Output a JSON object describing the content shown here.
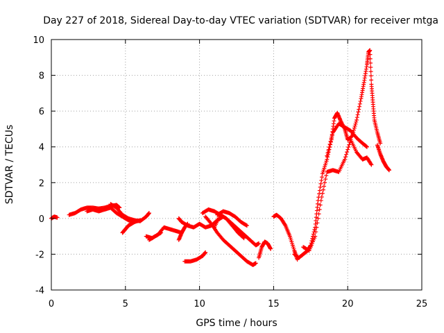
{
  "chart_data": {
    "type": "scatter",
    "title": "Day 227 of 2018, Sidereal Day-to-day VTEC variation (SDTVAR) for receiver mtga",
    "xlabel": "GPS time / hours",
    "ylabel": "SDTVAR / TECUs",
    "xlim": [
      0,
      25
    ],
    "ylim": [
      -4,
      10
    ],
    "xticks": [
      0,
      5,
      10,
      15,
      20,
      25
    ],
    "yticks": [
      -4,
      -2,
      0,
      2,
      4,
      6,
      8,
      10
    ],
    "xtick_labels": [
      "0",
      "5",
      "10",
      "15",
      "20",
      "25"
    ],
    "ytick_labels": [
      "-4",
      "-2",
      "0",
      "2",
      "4",
      "6",
      "8",
      "10"
    ],
    "grid": true,
    "marker": "plus",
    "color": "#ff0000",
    "series": [
      {
        "name": "seg1",
        "x": [
          0.0,
          0.2,
          0.4
        ],
        "y": [
          0.0,
          0.1,
          0.05
        ]
      },
      {
        "name": "seg2",
        "x": [
          1.2,
          1.6,
          2.0,
          2.4,
          2.8,
          3.2,
          3.6,
          4.0,
          4.4,
          4.6
        ],
        "y": [
          0.2,
          0.3,
          0.5,
          0.6,
          0.6,
          0.55,
          0.6,
          0.7,
          0.75,
          0.6
        ]
      },
      {
        "name": "seg3",
        "x": [
          2.4,
          2.8,
          3.2,
          3.6,
          4.0,
          4.4,
          4.8,
          5.2,
          5.6,
          6.0
        ],
        "y": [
          0.4,
          0.5,
          0.4,
          0.5,
          0.6,
          0.3,
          0.1,
          -0.1,
          -0.2,
          -0.1
        ]
      },
      {
        "name": "seg4",
        "x": [
          4.0,
          4.4,
          4.8,
          5.2,
          5.6,
          6.0,
          6.4,
          6.6
        ],
        "y": [
          0.8,
          0.6,
          0.2,
          0.0,
          -0.1,
          -0.15,
          0.1,
          0.3
        ]
      },
      {
        "name": "seg5",
        "x": [
          4.8,
          5.0,
          5.2,
          5.4,
          5.6
        ],
        "y": [
          -0.8,
          -0.6,
          -0.4,
          -0.3,
          -0.2
        ]
      },
      {
        "name": "seg6",
        "x": [
          6.4,
          6.8,
          7.2,
          7.6,
          8.0,
          8.4,
          8.8
        ],
        "y": [
          -1.0,
          -1.1,
          -0.9,
          -0.5,
          -0.6,
          -0.7,
          -0.8
        ]
      },
      {
        "name": "seg7",
        "x": [
          6.6,
          7.0,
          7.4
        ],
        "y": [
          -1.2,
          -1.0,
          -0.8
        ]
      },
      {
        "name": "seg8",
        "x": [
          8.6,
          8.8,
          9.0,
          9.2
        ],
        "y": [
          -1.2,
          -0.8,
          -0.5,
          -0.3
        ]
      },
      {
        "name": "seg9",
        "x": [
          8.6,
          8.8,
          9.2,
          9.6,
          10.0,
          10.4,
          10.8,
          11.2,
          11.6
        ],
        "y": [
          0.0,
          -0.2,
          -0.4,
          -0.5,
          -0.3,
          -0.5,
          -0.4,
          -0.1,
          0.1
        ]
      },
      {
        "name": "seg10",
        "x": [
          9.0,
          9.4,
          9.8,
          10.2,
          10.4
        ],
        "y": [
          -2.4,
          -2.4,
          -2.3,
          -2.1,
          -1.9
        ]
      },
      {
        "name": "seg11",
        "x": [
          10.2,
          10.6,
          11.0,
          11.4,
          11.8,
          12.2,
          12.6,
          13.0,
          13.4,
          13.8,
          14.0
        ],
        "y": [
          0.3,
          0.5,
          0.4,
          0.2,
          0.0,
          -0.3,
          -0.6,
          -0.9,
          -1.2,
          -1.5,
          -1.4
        ]
      },
      {
        "name": "seg12",
        "x": [
          10.4,
          10.8,
          11.2,
          11.6,
          12.0,
          12.4,
          12.8,
          13.2,
          13.6,
          13.8
        ],
        "y": [
          0.1,
          -0.3,
          -0.8,
          -1.2,
          -1.5,
          -1.8,
          -2.1,
          -2.4,
          -2.6,
          -2.5
        ]
      },
      {
        "name": "seg13",
        "x": [
          11.0,
          11.4,
          11.8,
          12.2,
          12.6,
          13.0
        ],
        "y": [
          -0.5,
          0.2,
          0.0,
          -0.4,
          -0.8,
          -1.1
        ]
      },
      {
        "name": "seg14",
        "x": [
          11.2,
          11.6,
          12.0,
          12.4,
          12.8,
          13.2
        ],
        "y": [
          0.2,
          0.4,
          0.3,
          0.1,
          -0.2,
          -0.4
        ]
      },
      {
        "name": "seg15",
        "x": [
          14.0,
          14.2,
          14.4,
          14.6,
          14.8
        ],
        "y": [
          -2.2,
          -1.6,
          -1.3,
          -1.4,
          -1.7
        ]
      },
      {
        "name": "seg16",
        "x": [
          15.0,
          15.2,
          15.5,
          15.8,
          16.1,
          16.4,
          16.6
        ],
        "y": [
          0.1,
          0.2,
          0.0,
          -0.4,
          -1.0,
          -1.8,
          -2.3
        ]
      },
      {
        "name": "seg17",
        "x": [
          16.4,
          16.7,
          17.0,
          17.3,
          17.5,
          17.8,
          18.0,
          18.3,
          18.6,
          18.9,
          19.1,
          19.3,
          19.5,
          19.8,
          20.0,
          20.3,
          20.6,
          20.9,
          21.1,
          21.3,
          21.4,
          21.5,
          21.6,
          21.7,
          21.8,
          22.0,
          22.2
        ],
        "y": [
          -2.0,
          -2.2,
          -2.0,
          -1.8,
          -1.5,
          -0.5,
          1.0,
          2.5,
          3.3,
          4.4,
          5.6,
          5.9,
          5.5,
          5.0,
          4.4,
          4.6,
          5.5,
          6.7,
          7.6,
          8.6,
          9.3,
          9.4,
          7.5,
          6.5,
          5.5,
          4.8,
          4.2
        ]
      },
      {
        "name": "seg18",
        "x": [
          17.0,
          17.4,
          17.8,
          18.2,
          18.6,
          19.0,
          19.4,
          19.8,
          20.2,
          20.6,
          21.0,
          21.3,
          21.6
        ],
        "y": [
          -1.6,
          -1.8,
          -1.0,
          1.0,
          2.6,
          2.7,
          2.6,
          3.3,
          4.4,
          3.7,
          3.3,
          3.4,
          3.0
        ]
      },
      {
        "name": "seg19",
        "x": [
          18.6,
          19.0,
          19.4,
          19.8,
          20.2,
          20.6,
          21.0,
          21.3
        ],
        "y": [
          3.5,
          4.8,
          5.3,
          5.1,
          4.9,
          4.5,
          4.2,
          4.0
        ]
      },
      {
        "name": "seg20",
        "x": [
          22.0,
          22.2,
          22.4,
          22.6,
          22.8
        ],
        "y": [
          4.1,
          3.6,
          3.2,
          2.9,
          2.7
        ]
      }
    ]
  }
}
